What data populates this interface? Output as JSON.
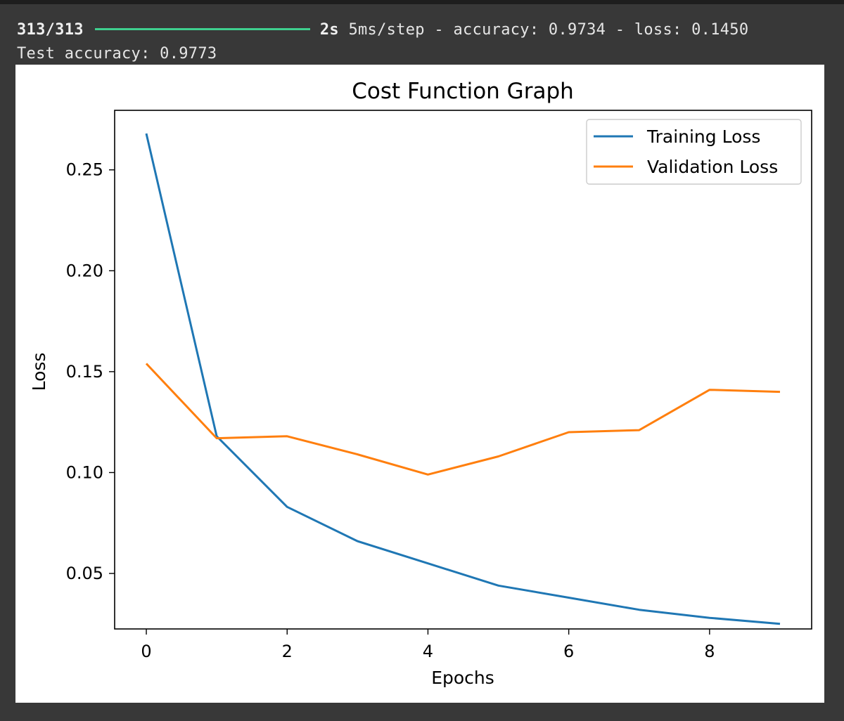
{
  "console": {
    "progress_count": "313/313",
    "progress_fraction": 1.0,
    "time_label": "2s",
    "step_label": "5ms/step",
    "metrics_text": "- accuracy: 0.9734 - loss: 0.1450",
    "test_accuracy": "Test accuracy: 0.9773"
  },
  "colors": {
    "background": "#383838",
    "progress_bar": "#3fcf8e",
    "training": "#1f77b4",
    "validation": "#ff7f0e"
  },
  "chart_data": {
    "type": "line",
    "title": "Cost Function Graph",
    "xlabel": "Epochs",
    "ylabel": "Loss",
    "x": [
      0,
      1,
      2,
      3,
      4,
      5,
      6,
      7,
      8,
      9
    ],
    "xlim": [
      -0.45,
      9.45
    ],
    "ylim": [
      0.0225,
      0.2795
    ],
    "xticks": [
      0,
      2,
      4,
      6,
      8
    ],
    "yticks": [
      0.05,
      0.1,
      0.15,
      0.2,
      0.25
    ],
    "ytick_labels": [
      "0.05",
      "0.10",
      "0.15",
      "0.20",
      "0.25"
    ],
    "legend_position": "top-right",
    "grid": false,
    "series": [
      {
        "name": "Training Loss",
        "color": "#1f77b4",
        "values": [
          0.268,
          0.118,
          0.083,
          0.066,
          0.055,
          0.044,
          0.038,
          0.032,
          0.028,
          0.025
        ]
      },
      {
        "name": "Validation Loss",
        "color": "#ff7f0e",
        "values": [
          0.154,
          0.117,
          0.118,
          0.109,
          0.099,
          0.108,
          0.12,
          0.121,
          0.141,
          0.14
        ]
      }
    ]
  }
}
